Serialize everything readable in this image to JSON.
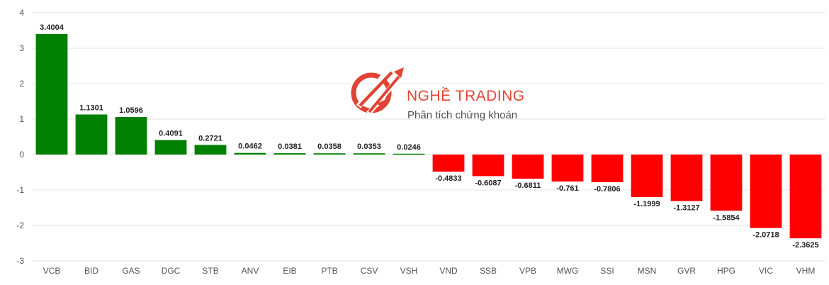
{
  "chart_data": {
    "type": "bar",
    "categories": [
      "VCB",
      "BID",
      "GAS",
      "DGC",
      "STB",
      "ANV",
      "EIB",
      "PTB",
      "CSV",
      "VSH",
      "VND",
      "SSB",
      "VPB",
      "MWG",
      "SSI",
      "MSN",
      "GVR",
      "HPG",
      "VIC",
      "VHM"
    ],
    "values": [
      3.4004,
      1.1301,
      1.0596,
      0.4091,
      0.2721,
      0.0462,
      0.0381,
      0.0358,
      0.0353,
      0.0246,
      -0.4833,
      -0.6087,
      -0.6811,
      -0.761,
      -0.7806,
      -1.1999,
      -1.3127,
      -1.5854,
      -2.0718,
      -2.3625
    ],
    "labels": [
      "3.4004",
      "1.1301",
      "1.0596",
      "0.4091",
      "0.2721",
      "0.0462",
      "0.0381",
      "0.0358",
      "0.0353",
      "0.0246",
      "-0.4833",
      "-0.6087",
      "-0.6811",
      "-0.761",
      "-0.7806",
      "-1.1999",
      "-1.3127",
      "-1.5854",
      "-2.0718",
      "-2.3625"
    ],
    "yticks": [
      "4",
      "3",
      "2",
      "1",
      "0",
      "-1",
      "-2",
      "-3"
    ],
    "ylim": [
      -3,
      4
    ],
    "grid": true,
    "legend": false,
    "colors": {
      "positive": "#008000",
      "negative": "#ff0000"
    },
    "title": "",
    "xlabel": "",
    "ylabel": ""
  },
  "watermark": {
    "name": "NGHỀ TRADING",
    "tagline": "Phân tích chứng khoán",
    "color": "#e03a2a"
  }
}
